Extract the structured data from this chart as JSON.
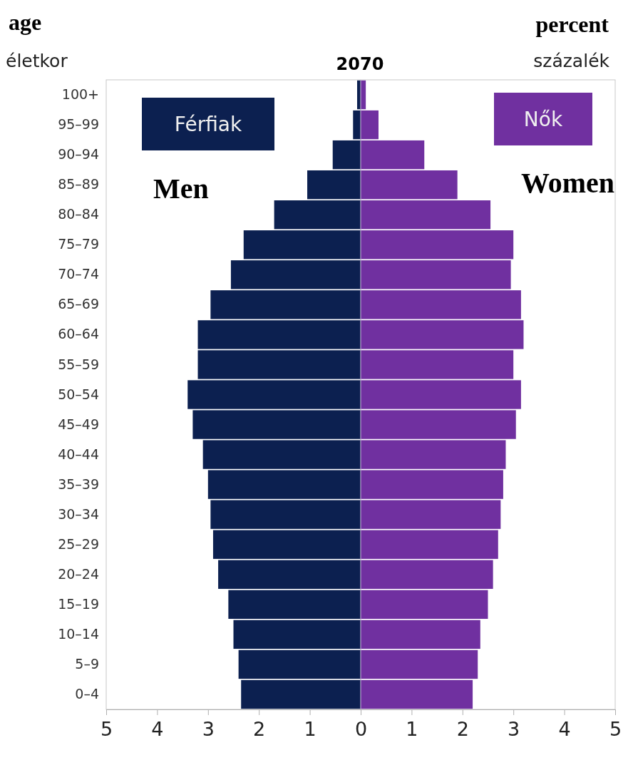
{
  "chart_data": {
    "type": "bar",
    "orientation": "horizontal",
    "stacked": true,
    "ref_lines": [
      {
        "axis": "x",
        "value": 0,
        "color": "#b9a6d0"
      }
    ],
    "title": "2070",
    "ylabel": "életkor",
    "xlabel": "százalék",
    "annotations": [
      "age",
      "percent",
      "Men",
      "Women"
    ],
    "categories": [
      "100+",
      "95–99",
      "90–94",
      "85–89",
      "80–84",
      "75–79",
      "70–74",
      "65–69",
      "60–64",
      "55–59",
      "50–54",
      "45–49",
      "40–44",
      "35–39",
      "30–34",
      "25–29",
      "20–24",
      "15–19",
      "10–14",
      "5–9",
      "0–4"
    ],
    "series": [
      {
        "name": "Férfiak",
        "color": "#0c2050",
        "values": [
          -0.07,
          -0.15,
          -0.55,
          -1.05,
          -1.7,
          -2.3,
          -2.55,
          -2.95,
          -3.2,
          -3.2,
          -3.4,
          -3.3,
          -3.1,
          -3.0,
          -2.95,
          -2.9,
          -2.8,
          -2.6,
          -2.5,
          -2.4,
          -2.35
        ]
      },
      {
        "name": "Nők",
        "color": "#7030a0",
        "values": [
          0.1,
          0.35,
          1.25,
          1.9,
          2.55,
          3.0,
          2.95,
          3.15,
          3.2,
          3.0,
          3.15,
          3.05,
          2.85,
          2.8,
          2.75,
          2.7,
          2.6,
          2.5,
          2.35,
          2.3,
          2.2
        ]
      }
    ],
    "xlim": [
      -5,
      5
    ],
    "xticks": [
      {
        "value": -5,
        "label": "5"
      },
      {
        "value": -4,
        "label": "4"
      },
      {
        "value": -3,
        "label": "3"
      },
      {
        "value": -2,
        "label": "2"
      },
      {
        "value": -1,
        "label": "1"
      },
      0,
      1,
      2,
      3,
      4,
      5
    ],
    "legend": "top",
    "grid": false
  }
}
